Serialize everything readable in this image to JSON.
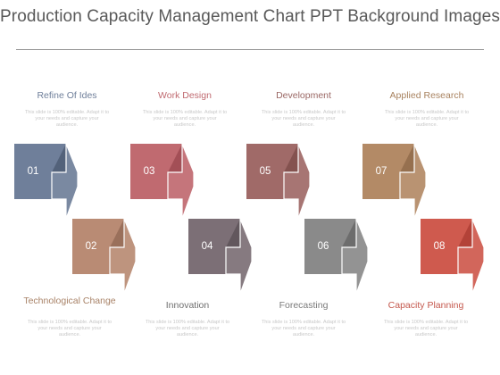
{
  "title": "Production Capacity Management Chart PPT Background Images",
  "steps": [
    {
      "number": "01",
      "label": "Refine Of Ides",
      "description": "This slide is 100% editable. Adapt it to your needs and capture your audience.",
      "color": "#6f7f9a",
      "color_dark": "#53627a",
      "label_color": "#6f7f9a",
      "position": "top"
    },
    {
      "number": "02",
      "label": "Technological Change",
      "description": "This slide is 100% editable. Adapt it to your needs and capture your audience.",
      "color": "#b98b74",
      "color_dark": "#9a705b",
      "label_color": "#a88267",
      "position": "bottom"
    },
    {
      "number": "03",
      "label": "Work Design",
      "description": "This slide is 100% editable. Adapt it to your needs and capture your audience.",
      "color": "#c06a70",
      "color_dark": "#a34f56",
      "label_color": "#c06a70",
      "position": "top"
    },
    {
      "number": "04",
      "label": "Innovation",
      "description": "This slide is 100% editable. Adapt it to your needs and capture your audience.",
      "color": "#7c6f76",
      "color_dark": "#62575d",
      "label_color": "#6f6f6f",
      "position": "bottom"
    },
    {
      "number": "05",
      "label": "Development",
      "description": "This slide is 100% editable. Adapt it to your needs and capture your audience.",
      "color": "#a06a68",
      "color_dark": "#84524f",
      "label_color": "#9a6764",
      "position": "top"
    },
    {
      "number": "06",
      "label": "Forecasting",
      "description": "This slide is 100% editable. Adapt it to your needs and capture your audience.",
      "color": "#8a8a8a",
      "color_dark": "#6d6d6d",
      "label_color": "#7a7a7a",
      "position": "bottom"
    },
    {
      "number": "07",
      "label": "Applied Research",
      "description": "This slide is 100% editable. Adapt it to your needs and capture your audience.",
      "color": "#b38a66",
      "color_dark": "#96704f",
      "label_color": "#a8825f",
      "position": "top"
    },
    {
      "number": "08",
      "label": "Capacity Planning",
      "description": "This slide is 100% editable. Adapt it to your needs and capture your audience.",
      "color": "#cf5a4e",
      "color_dark": "#b34238",
      "label_color": "#c4574c",
      "position": "bottom"
    }
  ]
}
